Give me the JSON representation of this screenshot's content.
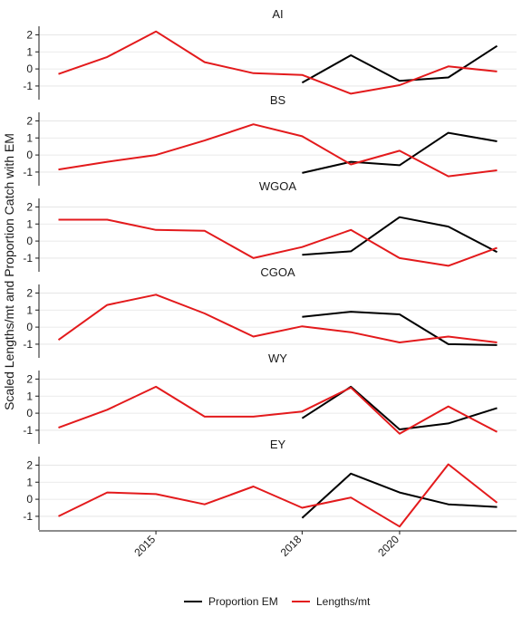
{
  "chart_data": {
    "type": "line",
    "ylabel": "Scaled Lengths/mt and Proportion Catch with EM",
    "xlabel": "",
    "x": [
      2013,
      2014,
      2015,
      2016,
      2017,
      2018,
      2019,
      2020,
      2021,
      2022
    ],
    "xlim": [
      2012.6,
      2022.4
    ],
    "xticks": [
      "2015",
      "2018",
      "2020"
    ],
    "ylim": [
      -1.8,
      2.5
    ],
    "yticks": [
      -1,
      0,
      1,
      2
    ],
    "legend": {
      "position": "bottom"
    },
    "colors": {
      "Proportion EM": "#000000",
      "Lengths/mt": "#e31a1c"
    },
    "series_names": [
      "Proportion EM",
      "Lengths/mt"
    ],
    "panels": [
      {
        "title": "AI",
        "series": [
          {
            "name": "Proportion EM",
            "x": [
              2018,
              2019,
              2020,
              2021,
              2022
            ],
            "values": [
              -0.8,
              0.8,
              -0.7,
              -0.5,
              1.35
            ]
          },
          {
            "name": "Lengths/mt",
            "x": [
              2013,
              2014,
              2015,
              2016,
              2017,
              2018,
              2019,
              2020,
              2021,
              2022
            ],
            "values": [
              -0.3,
              0.7,
              2.2,
              0.4,
              -0.25,
              -0.35,
              -1.45,
              -0.95,
              0.15,
              -0.15
            ]
          }
        ]
      },
      {
        "title": "BS",
        "series": [
          {
            "name": "Proportion EM",
            "x": [
              2018,
              2019,
              2020,
              2021,
              2022
            ],
            "values": [
              -1.05,
              -0.4,
              -0.6,
              1.3,
              0.8
            ]
          },
          {
            "name": "Lengths/mt",
            "x": [
              2013,
              2014,
              2015,
              2016,
              2017,
              2018,
              2019,
              2020,
              2021,
              2022
            ],
            "values": [
              -0.85,
              -0.4,
              0.0,
              0.85,
              1.8,
              1.1,
              -0.55,
              0.25,
              -1.25,
              -0.9
            ]
          }
        ]
      },
      {
        "title": "WGOA",
        "series": [
          {
            "name": "Proportion EM",
            "x": [
              2018,
              2019,
              2020,
              2021,
              2022
            ],
            "values": [
              -0.8,
              -0.6,
              1.4,
              0.85,
              -0.65
            ]
          },
          {
            "name": "Lengths/mt",
            "x": [
              2013,
              2014,
              2015,
              2016,
              2017,
              2018,
              2019,
              2020,
              2021,
              2022
            ],
            "values": [
              1.25,
              1.25,
              0.65,
              0.6,
              -1.0,
              -0.35,
              0.65,
              -1.0,
              -1.45,
              -0.4
            ]
          }
        ]
      },
      {
        "title": "CGOA",
        "series": [
          {
            "name": "Proportion EM",
            "x": [
              2018,
              2019,
              2020,
              2021,
              2022
            ],
            "values": [
              0.6,
              0.9,
              0.75,
              -1.0,
              -1.05
            ]
          },
          {
            "name": "Lengths/mt",
            "x": [
              2013,
              2014,
              2015,
              2016,
              2017,
              2018,
              2019,
              2020,
              2021,
              2022
            ],
            "values": [
              -0.75,
              1.3,
              1.9,
              0.8,
              -0.55,
              0.05,
              -0.3,
              -0.9,
              -0.55,
              -0.9
            ]
          }
        ]
      },
      {
        "title": "WY",
        "series": [
          {
            "name": "Proportion EM",
            "x": [
              2018,
              2019,
              2020,
              2021,
              2022
            ],
            "values": [
              -0.3,
              1.55,
              -0.95,
              -0.6,
              0.3
            ]
          },
          {
            "name": "Lengths/mt",
            "x": [
              2013,
              2014,
              2015,
              2016,
              2017,
              2018,
              2019,
              2020,
              2021,
              2022
            ],
            "values": [
              -0.85,
              0.2,
              1.55,
              -0.2,
              -0.2,
              0.1,
              1.5,
              -1.2,
              0.4,
              -1.1
            ]
          }
        ]
      },
      {
        "title": "EY",
        "series": [
          {
            "name": "Proportion EM",
            "x": [
              2018,
              2019,
              2020,
              2021,
              2022
            ],
            "values": [
              -1.1,
              1.5,
              0.4,
              -0.3,
              -0.45
            ]
          },
          {
            "name": "Lengths/mt",
            "x": [
              2013,
              2014,
              2015,
              2016,
              2017,
              2018,
              2019,
              2020,
              2021,
              2022
            ],
            "values": [
              -1.0,
              0.4,
              0.3,
              -0.3,
              0.75,
              -0.5,
              0.1,
              -1.6,
              2.05,
              -0.2
            ]
          }
        ]
      }
    ]
  }
}
